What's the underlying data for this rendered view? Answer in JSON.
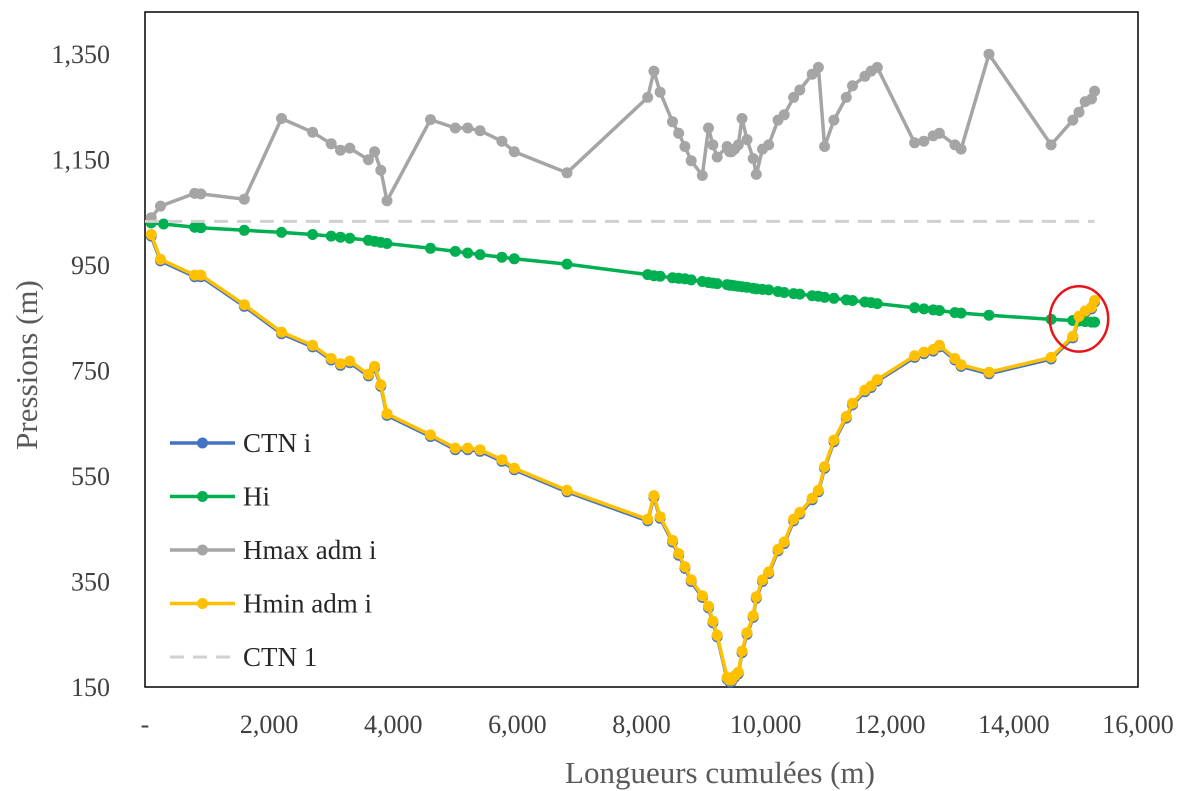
{
  "chart_data": {
    "type": "line",
    "xlabel": "Longueurs cumulées (m)",
    "ylabel": "Pressions (m)",
    "xlim": [
      0,
      16000
    ],
    "ylim": [
      150,
      1430
    ],
    "x_ticks": [
      {
        "value": 0,
        "label": "-"
      },
      {
        "value": 2000,
        "label": "2,000"
      },
      {
        "value": 4000,
        "label": "4,000"
      },
      {
        "value": 6000,
        "label": "6,000"
      },
      {
        "value": 8000,
        "label": "8,000"
      },
      {
        "value": 10000,
        "label": "10,000"
      },
      {
        "value": 12000,
        "label": "12,000"
      },
      {
        "value": 14000,
        "label": "14,000"
      },
      {
        "value": 16000,
        "label": "16,000"
      }
    ],
    "y_ticks": [
      {
        "value": 150,
        "label": "150"
      },
      {
        "value": 350,
        "label": "350"
      },
      {
        "value": 550,
        "label": "550"
      },
      {
        "value": 750,
        "label": "750"
      },
      {
        "value": 950,
        "label": "950"
      },
      {
        "value": 1150,
        "label": "1,150"
      },
      {
        "value": 1350,
        "label": "1,350"
      }
    ],
    "grid": false,
    "legend_position": "left",
    "annotation": {
      "shape": "ellipse",
      "color": "#e8141c",
      "cx": 15050,
      "cy": 848,
      "rx": 470,
      "ry": 62
    },
    "series": [
      {
        "name": "CTN i",
        "color": "#4472c4",
        "style": "solid",
        "markers": true,
        "x": [
          100,
          250,
          800,
          900,
          1600,
          2200,
          2700,
          3000,
          3150,
          3300,
          3600,
          3700,
          3800,
          3900,
          4600,
          5000,
          5200,
          5400,
          5750,
          5950,
          6800,
          8100,
          8200,
          8300,
          8500,
          8600,
          8700,
          8800,
          8980,
          9080,
          9150,
          9220,
          9380,
          9420,
          9450,
          9500,
          9560,
          9620,
          9700,
          9800,
          9850,
          9950,
          10050,
          10200,
          10300,
          10450,
          10550,
          10750,
          10850,
          10950,
          11100,
          11300,
          11400,
          11600,
          11700,
          11800,
          12400,
          12550,
          12700,
          12800,
          13050,
          13150,
          13600,
          14600,
          14950,
          15050,
          15150,
          15250,
          15300
        ],
        "y": [
          1005,
          958,
          928,
          928,
          872,
          820,
          795,
          770,
          760,
          765,
          740,
          755,
          720,
          665,
          625,
          600,
          600,
          597,
          578,
          562,
          520,
          465,
          510,
          470,
          425,
          400,
          375,
          350,
          320,
          300,
          272,
          245,
          165,
          160,
          160,
          168,
          175,
          215,
          250,
          282,
          318,
          350,
          365,
          408,
          422,
          465,
          478,
          505,
          520,
          565,
          615,
          660,
          685,
          710,
          718,
          730,
          775,
          782,
          787,
          795,
          770,
          758,
          744,
          772,
          812,
          850,
          860,
          867,
          880
        ]
      },
      {
        "name": "Hi",
        "color": "#00b050",
        "style": "solid",
        "markers": true,
        "x": [
          100,
          300,
          800,
          900,
          1600,
          2200,
          2700,
          3000,
          3150,
          3300,
          3600,
          3700,
          3800,
          3900,
          4600,
          5000,
          5200,
          5400,
          5750,
          5950,
          6800,
          8100,
          8200,
          8300,
          8500,
          8600,
          8700,
          8800,
          8980,
          9080,
          9150,
          9220,
          9380,
          9420,
          9450,
          9500,
          9560,
          9620,
          9700,
          9800,
          9850,
          9950,
          10050,
          10200,
          10300,
          10450,
          10550,
          10750,
          10850,
          10950,
          11100,
          11300,
          11400,
          11600,
          11700,
          11800,
          12400,
          12550,
          12700,
          12800,
          13050,
          13150,
          13600,
          14600,
          14950,
          15050,
          15150,
          15250,
          15300
        ],
        "y": [
          1030,
          1028,
          1022,
          1021,
          1016,
          1012,
          1008,
          1005,
          1003,
          1001,
          997,
          995,
          993,
          991,
          982,
          976,
          973,
          970,
          965,
          962,
          952,
          932,
          930,
          929,
          926,
          925,
          924,
          922,
          919,
          917,
          916,
          915,
          913,
          912,
          912,
          911,
          910,
          909,
          908,
          906,
          905,
          904,
          903,
          900,
          898,
          896,
          895,
          892,
          891,
          889,
          887,
          884,
          883,
          880,
          879,
          877,
          869,
          867,
          865,
          864,
          860,
          859,
          855,
          847,
          845,
          844,
          843,
          842,
          842
        ]
      },
      {
        "name": "Hmax adm i",
        "color": "#a5a5a5",
        "style": "solid",
        "markers": true,
        "x": [
          100,
          250,
          800,
          900,
          1600,
          2200,
          2700,
          3000,
          3150,
          3300,
          3600,
          3700,
          3800,
          3900,
          4600,
          5000,
          5200,
          5400,
          5750,
          5950,
          6800,
          8100,
          8200,
          8300,
          8500,
          8600,
          8700,
          8800,
          8980,
          9080,
          9150,
          9220,
          9380,
          9420,
          9450,
          9500,
          9560,
          9620,
          9700,
          9800,
          9850,
          9950,
          10050,
          10200,
          10300,
          10450,
          10550,
          10750,
          10850,
          10950,
          11100,
          11300,
          11400,
          11600,
          11700,
          11800,
          12400,
          12550,
          12700,
          12800,
          13050,
          13150,
          13600,
          14600,
          14950,
          15050,
          15150,
          15250,
          15300
        ],
        "y": [
          1040,
          1062,
          1086,
          1085,
          1075,
          1228,
          1202,
          1180,
          1168,
          1172,
          1150,
          1165,
          1130,
          1072,
          1226,
          1210,
          1210,
          1205,
          1185,
          1165,
          1125,
          1268,
          1318,
          1278,
          1222,
          1200,
          1175,
          1148,
          1120,
          1210,
          1178,
          1155,
          1175,
          1165,
          1165,
          1170,
          1178,
          1228,
          1188,
          1152,
          1122,
          1170,
          1178,
          1225,
          1235,
          1268,
          1282,
          1312,
          1325,
          1175,
          1225,
          1268,
          1290,
          1308,
          1318,
          1325,
          1182,
          1185,
          1195,
          1200,
          1178,
          1170,
          1350,
          1178,
          1225,
          1240,
          1260,
          1265,
          1280
        ]
      },
      {
        "name": "Hmin adm i",
        "color": "#ffc000",
        "style": "solid",
        "markers": true,
        "x": [
          100,
          250,
          800,
          900,
          1600,
          2200,
          2700,
          3000,
          3150,
          3300,
          3600,
          3700,
          3800,
          3900,
          4600,
          5000,
          5200,
          5400,
          5750,
          5950,
          6800,
          8100,
          8200,
          8300,
          8500,
          8600,
          8700,
          8800,
          8980,
          9080,
          9150,
          9220,
          9380,
          9420,
          9450,
          9500,
          9560,
          9620,
          9700,
          9800,
          9850,
          9950,
          10050,
          10200,
          10300,
          10450,
          10550,
          10750,
          10850,
          10950,
          11100,
          11300,
          11400,
          11600,
          11700,
          11800,
          12400,
          12550,
          12700,
          12800,
          13050,
          13150,
          13600,
          14600,
          14950,
          15050,
          15150,
          15250,
          15300
        ],
        "y": [
          1008,
          961,
          931,
          931,
          875,
          823,
          798,
          773,
          763,
          768,
          743,
          758,
          723,
          668,
          628,
          603,
          603,
          600,
          581,
          565,
          523,
          468,
          513,
          473,
          428,
          403,
          378,
          353,
          323,
          303,
          275,
          248,
          168,
          163,
          163,
          171,
          178,
          218,
          253,
          285,
          321,
          353,
          368,
          411,
          425,
          468,
          481,
          508,
          523,
          568,
          618,
          663,
          688,
          713,
          721,
          733,
          778,
          785,
          790,
          798,
          773,
          761,
          747,
          775,
          815,
          853,
          863,
          870,
          883
        ]
      },
      {
        "name": "CTN 1",
        "color": "#d0d0d0",
        "style": "dashed",
        "markers": false,
        "x": [
          0,
          15300
        ],
        "y": [
          1033,
          1033
        ]
      }
    ]
  }
}
